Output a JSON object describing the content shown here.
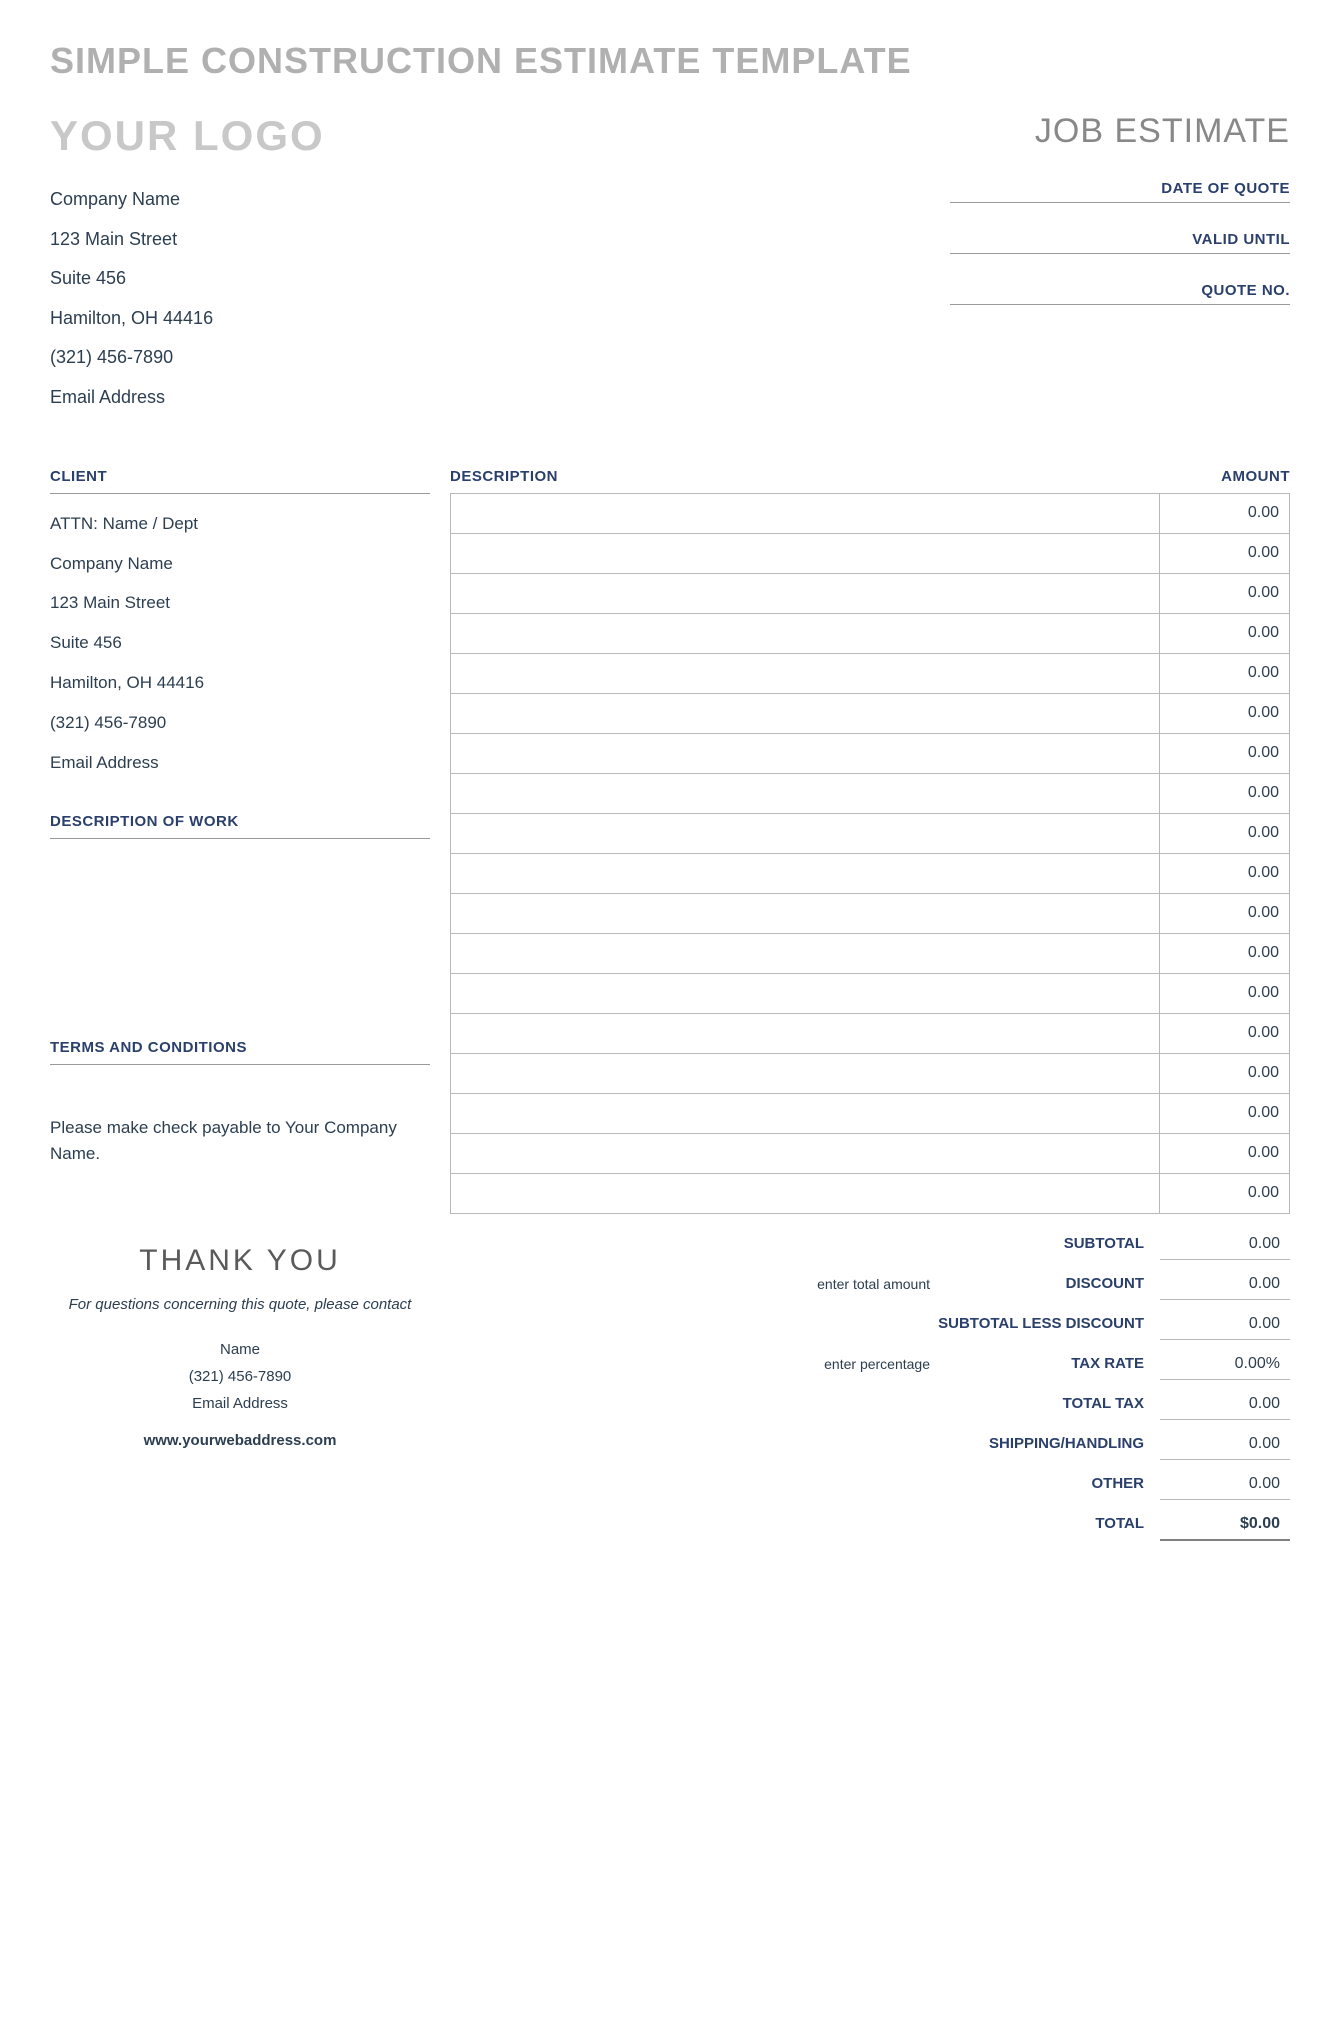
{
  "page_title": "SIMPLE CONSTRUCTION ESTIMATE TEMPLATE",
  "logo_placeholder": "YOUR LOGO",
  "doc_title": "JOB ESTIMATE",
  "company": {
    "name": "Company Name",
    "street": "123 Main Street",
    "suite": "Suite 456",
    "city": "Hamilton, OH  44416",
    "phone": "(321) 456-7890",
    "email": "Email Address"
  },
  "meta": {
    "date_of_quote_label": "DATE OF QUOTE",
    "valid_until_label": "VALID UNTIL",
    "quote_no_label": "QUOTE NO."
  },
  "headers": {
    "client": "CLIENT",
    "description": "DESCRIPTION",
    "amount": "AMOUNT",
    "description_of_work": "DESCRIPTION OF WORK",
    "terms": "TERMS AND CONDITIONS"
  },
  "client": {
    "attn": "ATTN: Name / Dept",
    "company": "Company Name",
    "street": "123 Main Street",
    "suite": "Suite 456",
    "city": "Hamilton, OH  44416",
    "phone": "(321) 456-7890",
    "email": "Email Address"
  },
  "terms_text": "Please make check payable to Your Company Name.",
  "line_items": [
    {
      "desc": "",
      "amount": "0.00"
    },
    {
      "desc": "",
      "amount": "0.00"
    },
    {
      "desc": "",
      "amount": "0.00"
    },
    {
      "desc": "",
      "amount": "0.00"
    },
    {
      "desc": "",
      "amount": "0.00"
    },
    {
      "desc": "",
      "amount": "0.00"
    },
    {
      "desc": "",
      "amount": "0.00"
    },
    {
      "desc": "",
      "amount": "0.00"
    },
    {
      "desc": "",
      "amount": "0.00"
    },
    {
      "desc": "",
      "amount": "0.00"
    },
    {
      "desc": "",
      "amount": "0.00"
    },
    {
      "desc": "",
      "amount": "0.00"
    },
    {
      "desc": "",
      "amount": "0.00"
    },
    {
      "desc": "",
      "amount": "0.00"
    },
    {
      "desc": "",
      "amount": "0.00"
    },
    {
      "desc": "",
      "amount": "0.00"
    },
    {
      "desc": "",
      "amount": "0.00"
    },
    {
      "desc": "",
      "amount": "0.00"
    }
  ],
  "totals": {
    "subtotal": {
      "label": "SUBTOTAL",
      "value": "0.00",
      "hint": ""
    },
    "discount": {
      "label": "DISCOUNT",
      "value": "0.00",
      "hint": "enter total amount"
    },
    "subtotal_less_discount": {
      "label": "SUBTOTAL LESS DISCOUNT",
      "value": "0.00",
      "hint": ""
    },
    "tax_rate": {
      "label": "TAX RATE",
      "value": "0.00%",
      "hint": "enter percentage"
    },
    "total_tax": {
      "label": "TOTAL TAX",
      "value": "0.00",
      "hint": ""
    },
    "shipping": {
      "label": "SHIPPING/HANDLING",
      "value": "0.00",
      "hint": ""
    },
    "other": {
      "label": "OTHER",
      "value": "0.00",
      "hint": ""
    },
    "grand_total": {
      "label": "TOTAL",
      "value": "$0.00",
      "hint": ""
    }
  },
  "footer": {
    "thank_you": "THANK YOU",
    "questions": "For questions concerning this quote, please contact",
    "name": "Name",
    "phone": "(321) 456-7890",
    "email": "Email Address",
    "website": "www.yourwebaddress.com"
  },
  "colors": {
    "title_gray": "#b0b0b0",
    "logo_gray": "#c8c8c8",
    "accent_navy": "#2a3f6b",
    "text": "#2c3e50",
    "border": "#b8b8b8",
    "background": "#ffffff"
  }
}
